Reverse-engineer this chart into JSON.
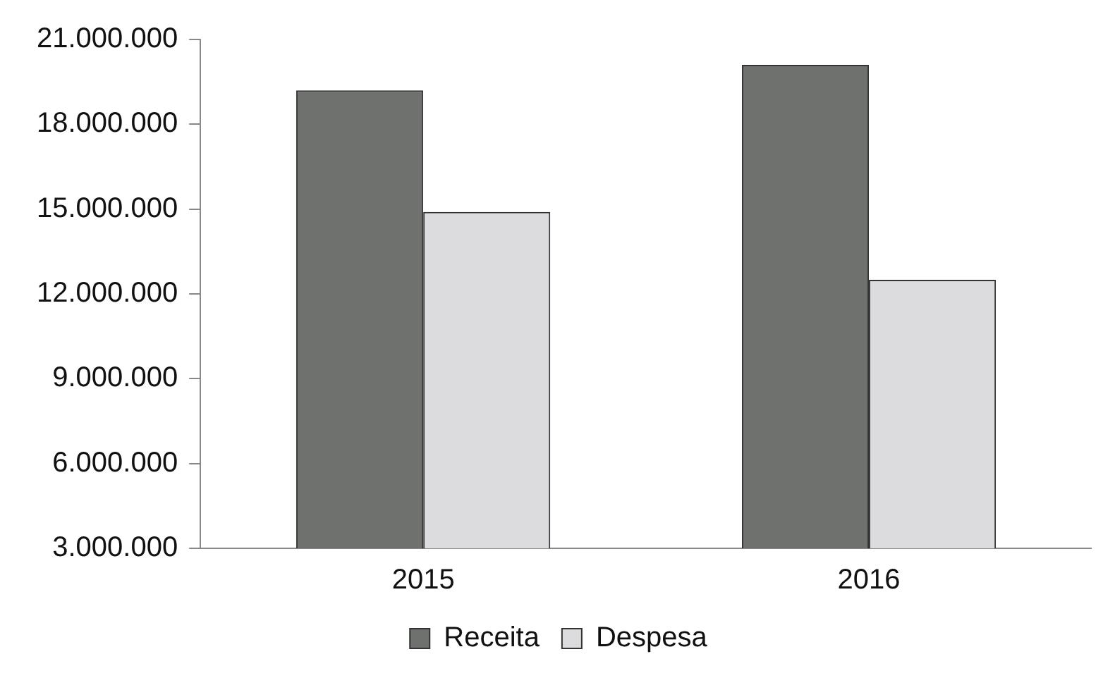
{
  "chart_data": {
    "type": "bar",
    "categories": [
      "2015",
      "2016"
    ],
    "series": [
      {
        "name": "Receita",
        "color": "#6e716e",
        "values": [
          19200000,
          20100000
        ]
      },
      {
        "name": "Despesa",
        "color": "#dcdcdf",
        "values": [
          14900000,
          12500000
        ]
      }
    ],
    "ylim": [
      3000000,
      21000000
    ],
    "yticks": [
      {
        "value": 3000000,
        "label": "3.000.000"
      },
      {
        "value": 6000000,
        "label": "6.000.000"
      },
      {
        "value": 9000000,
        "label": "9.000.000"
      },
      {
        "value": 12000000,
        "label": "12.000.000"
      },
      {
        "value": 15000000,
        "label": "15.000.000"
      },
      {
        "value": 18000000,
        "label": "18.000.000"
      },
      {
        "value": 21000000,
        "label": "21.000.000"
      }
    ],
    "grid": false,
    "legend": "bottom"
  }
}
